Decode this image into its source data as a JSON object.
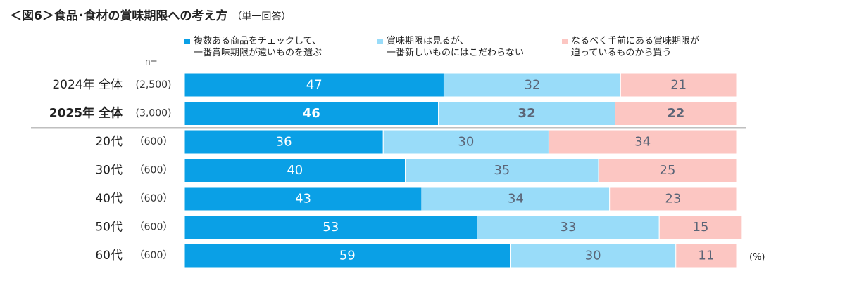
{
  "title": "＜図6＞食品･食材の賞味期限への考え方",
  "subtitle": "（単一回答）",
  "n_label": "n=",
  "unit_label": "(%)",
  "colors": {
    "series1": "#0aa0e6",
    "series2": "#99dcf9",
    "series3": "#fcc6c2",
    "label_dark": "#5b6577",
    "label_light": "#ffffff",
    "separator": "#bfbfbf"
  },
  "chart_data": {
    "type": "bar",
    "orientation": "horizontal",
    "stacked": true,
    "percent": true,
    "categories": [
      "2024年 全体",
      "2025年 全体",
      "20代",
      "30代",
      "40代",
      "50代",
      "60代"
    ],
    "sample_sizes": [
      "(2,500)",
      "(3,000)",
      "（600）",
      "（600）",
      "（600）",
      "（600）",
      "（600）"
    ],
    "highlight_index": 1,
    "series": [
      {
        "name": "複数ある商品をチェックして、\n一番賞味期限が遠いものを選ぶ",
        "values": [
          47,
          46,
          36,
          40,
          43,
          53,
          59
        ]
      },
      {
        "name": "賞味期限は見るが、\n一番新しいものにはこだわらない",
        "values": [
          32,
          32,
          30,
          35,
          34,
          33,
          30
        ]
      },
      {
        "name": "なるべく手前にある賞味期限が\n迫っているものから買う",
        "values": [
          21,
          22,
          34,
          25,
          23,
          15,
          11
        ]
      }
    ],
    "xlim": [
      0,
      100
    ],
    "legend": "top"
  }
}
